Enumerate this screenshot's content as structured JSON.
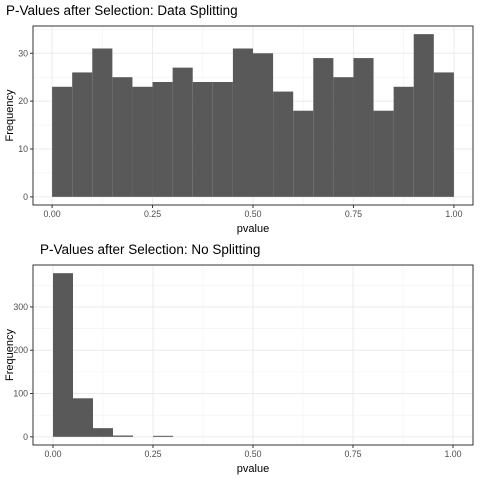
{
  "chart_data": [
    {
      "type": "bar",
      "title": "P-Values after Selection: Data Splitting",
      "xlabel": "pvalue",
      "ylabel": "Frequency",
      "bin_width": 0.05,
      "bin_starts": [
        0.0,
        0.05,
        0.1,
        0.15,
        0.2,
        0.25,
        0.3,
        0.35,
        0.4,
        0.45,
        0.5,
        0.55,
        0.6,
        0.65,
        0.7,
        0.75,
        0.8,
        0.85,
        0.9,
        0.95
      ],
      "values": [
        23,
        26,
        31,
        25,
        23,
        24,
        27,
        24,
        24,
        31,
        30,
        22,
        18,
        29,
        25,
        29,
        18,
        23,
        34,
        26
      ],
      "xlim": [
        -0.0475,
        1.0475
      ],
      "ylim": [
        -1.7,
        35.7
      ],
      "x_ticks": [
        0,
        0.25,
        0.5,
        0.75,
        1
      ],
      "x_tick_labels": [
        "0.00",
        "0.25",
        "0.50",
        "0.75",
        "1.00"
      ],
      "y_ticks": [
        0,
        10,
        20,
        30
      ],
      "y_tick_labels": [
        "0",
        "10",
        "20",
        "30"
      ],
      "grid": true,
      "bar_color": "#595959"
    },
    {
      "type": "bar",
      "title": "P-Values after Selection: No Splitting",
      "xlabel": "pvalue",
      "ylabel": "Frequency",
      "bin_width": 0.05,
      "bin_starts": [
        0.0,
        0.05,
        0.1,
        0.15,
        0.2,
        0.25
      ],
      "values": [
        378,
        89,
        20,
        3,
        0,
        1
      ],
      "xlim": [
        -0.05,
        1.05
      ],
      "ylim": [
        -18.9,
        396.9
      ],
      "x_ticks": [
        0,
        0.25,
        0.5,
        0.75,
        1
      ],
      "x_tick_labels": [
        "0.00",
        "0.25",
        "0.50",
        "0.75",
        "1.00"
      ],
      "y_ticks": [
        0,
        100,
        200,
        300
      ],
      "y_tick_labels": [
        "0",
        "100",
        "200",
        "300"
      ],
      "grid": true,
      "bar_color": "#595959"
    }
  ]
}
